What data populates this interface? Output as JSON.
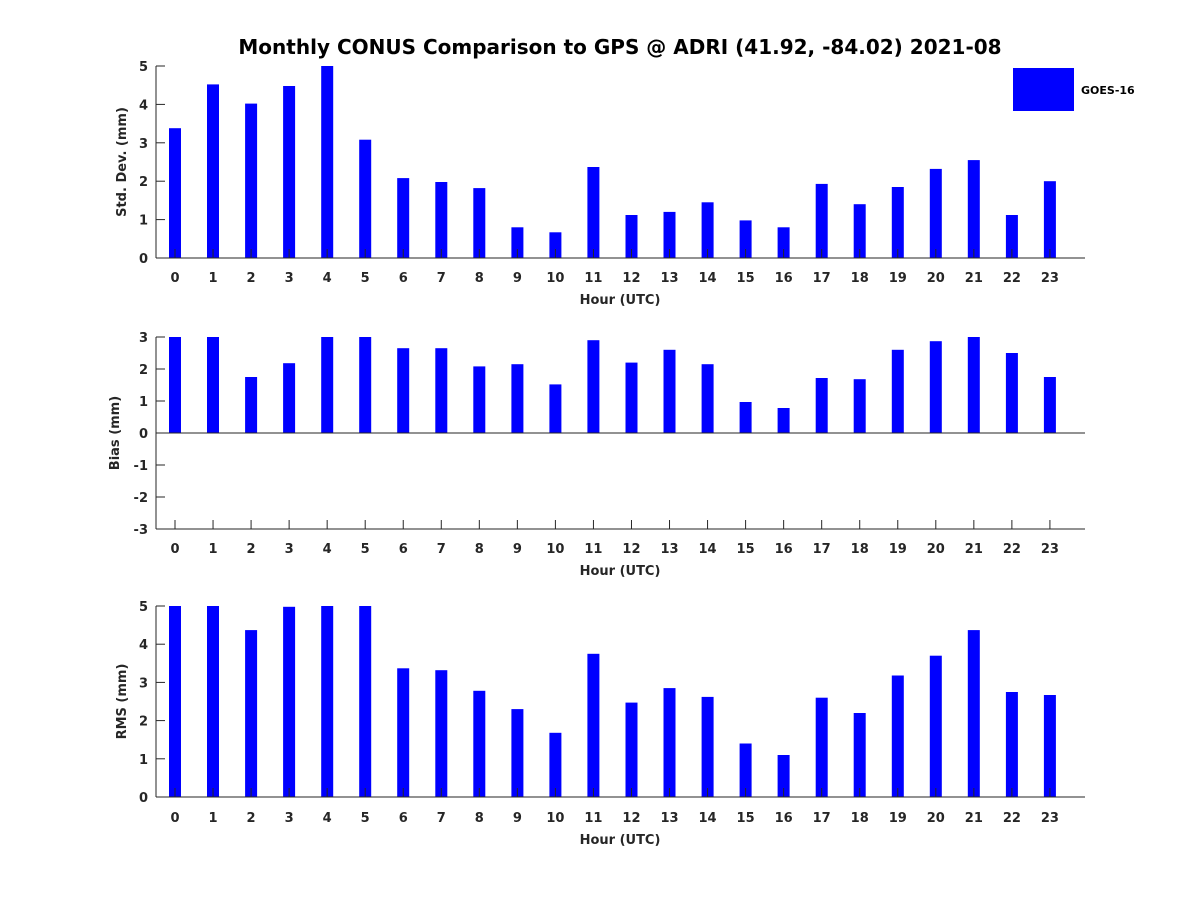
{
  "title": "Monthly CONUS Comparison to GPS @ ADRI (41.92, -84.02) 2021-08",
  "legend": {
    "label": "GOES-16",
    "color": "#0000ff"
  },
  "colors": {
    "bar": "#0000ff",
    "axis": "#262626",
    "background": "#ffffff"
  },
  "chart_data": [
    {
      "type": "bar",
      "title": "",
      "series_name": "GOES-16",
      "xlabel": "Hour (UTC)",
      "ylabel": "Std. Dev. (mm)",
      "ylim": [
        0,
        5
      ],
      "yticks": [
        0,
        1,
        2,
        3,
        4,
        5
      ],
      "categories": [
        "0",
        "1",
        "2",
        "3",
        "4",
        "5",
        "6",
        "7",
        "8",
        "9",
        "10",
        "11",
        "12",
        "13",
        "14",
        "15",
        "16",
        "17",
        "18",
        "19",
        "20",
        "21",
        "22",
        "23"
      ],
      "values": [
        3.38,
        4.52,
        4.02,
        4.48,
        5.0,
        3.08,
        2.08,
        1.98,
        1.82,
        0.8,
        0.67,
        2.37,
        1.12,
        1.2,
        1.45,
        0.98,
        0.8,
        1.93,
        1.4,
        1.85,
        2.32,
        2.55,
        1.12,
        2.0
      ]
    },
    {
      "type": "bar",
      "title": "",
      "series_name": "GOES-16",
      "xlabel": "Hour (UTC)",
      "ylabel": "Bias (mm)",
      "ylim": [
        -3,
        3
      ],
      "yticks": [
        -3,
        -2,
        -1,
        0,
        1,
        2,
        3
      ],
      "categories": [
        "0",
        "1",
        "2",
        "3",
        "4",
        "5",
        "6",
        "7",
        "8",
        "9",
        "10",
        "11",
        "12",
        "13",
        "14",
        "15",
        "16",
        "17",
        "18",
        "19",
        "20",
        "21",
        "22",
        "23"
      ],
      "values": [
        3.0,
        3.0,
        1.75,
        2.18,
        3.0,
        3.0,
        2.65,
        2.65,
        2.08,
        2.15,
        1.52,
        2.9,
        2.2,
        2.6,
        2.15,
        0.97,
        0.78,
        1.72,
        1.68,
        2.6,
        2.87,
        3.0,
        2.5,
        1.75
      ]
    },
    {
      "type": "bar",
      "title": "",
      "series_name": "GOES-16",
      "xlabel": "Hour (UTC)",
      "ylabel": "RMS (mm)",
      "ylim": [
        0,
        5
      ],
      "yticks": [
        0,
        1,
        2,
        3,
        4,
        5
      ],
      "categories": [
        "0",
        "1",
        "2",
        "3",
        "4",
        "5",
        "6",
        "7",
        "8",
        "9",
        "10",
        "11",
        "12",
        "13",
        "14",
        "15",
        "16",
        "17",
        "18",
        "19",
        "20",
        "21",
        "22",
        "23"
      ],
      "values": [
        5.0,
        5.0,
        4.37,
        4.98,
        5.0,
        5.0,
        3.37,
        3.32,
        2.78,
        2.3,
        1.68,
        3.75,
        2.47,
        2.85,
        2.62,
        1.4,
        1.1,
        2.6,
        2.2,
        3.18,
        3.7,
        4.37,
        2.75,
        2.67
      ]
    }
  ]
}
